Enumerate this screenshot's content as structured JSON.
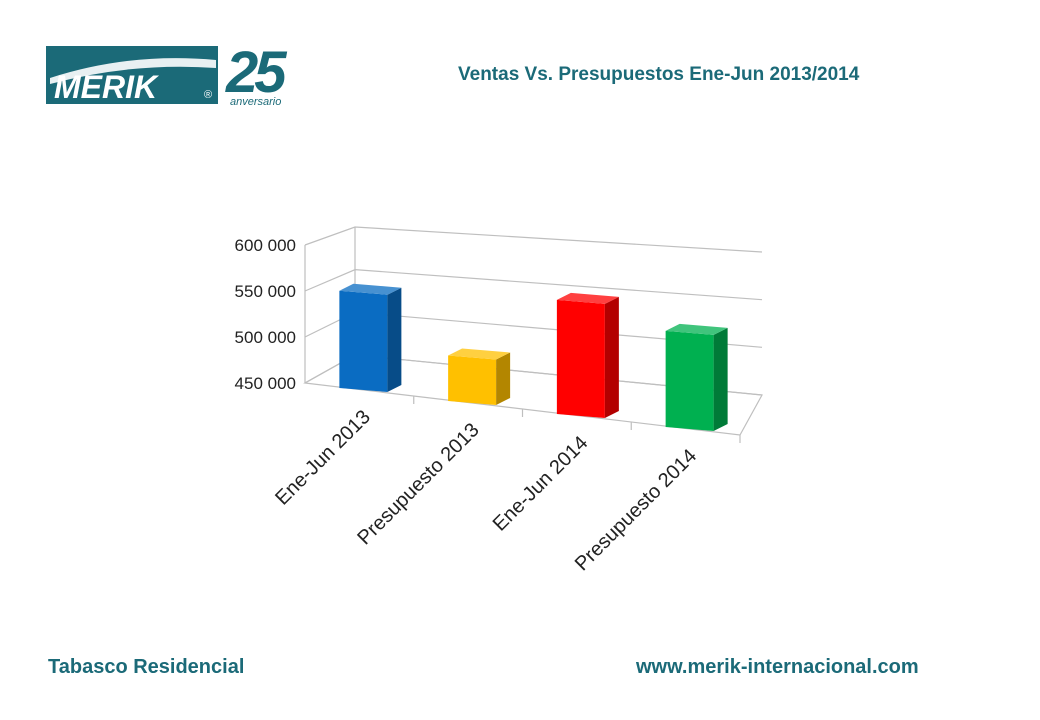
{
  "slide": {
    "title": "Ventas Vs. Presupuestos Ene-Jun 2013/2014",
    "footer_left": "Tabasco Residencial",
    "footer_right": "www.merik-internacional.com"
  },
  "logo": {
    "brand": "MERIK",
    "registered": "®",
    "number": "25",
    "subtitle": "anversario",
    "color": "#1b6a78"
  },
  "chart_data": {
    "type": "bar",
    "title": "",
    "xlabel": "",
    "ylabel": "",
    "categories": [
      "Ene-Jun 2013",
      "Presupuesto 2013",
      "Ene-Jun 2014",
      "Presupuesto 2014"
    ],
    "values": [
      560000,
      500000,
      572000,
      550000
    ],
    "colors": [
      "#0a6cc2",
      "#ffc000",
      "#ff0000",
      "#00b050"
    ],
    "ylim": [
      450000,
      600000
    ],
    "yticks": [
      {
        "value": 450000,
        "label": "450 000"
      },
      {
        "value": 500000,
        "label": "500 000"
      },
      {
        "value": 550000,
        "label": "550 000"
      },
      {
        "value": 600000,
        "label": "600 000"
      }
    ],
    "grid": true,
    "legend": "none",
    "style": "3d"
  }
}
